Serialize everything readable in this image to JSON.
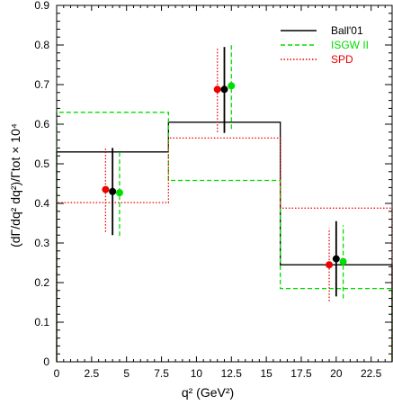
{
  "chart_data": {
    "type": "step",
    "xlabel": "q² (GeV²)",
    "ylabel": "(dΓ/dq² dq²)/Γtot × 10⁴",
    "xlim": [
      0,
      24
    ],
    "ylim": [
      0,
      0.9
    ],
    "x_ticks": [
      0,
      2.5,
      5,
      7.5,
      10,
      12.5,
      15,
      17.5,
      20,
      22.5
    ],
    "x_tick_labels": [
      "0",
      "2.5",
      "5",
      "7.5",
      "10",
      "12.5",
      "15",
      "17.5",
      "20",
      "22.5"
    ],
    "y_ticks": [
      0,
      0.1,
      0.2,
      0.3,
      0.4,
      0.5,
      0.6,
      0.7,
      0.8,
      0.9
    ],
    "y_tick_labels": [
      "0",
      "0.1",
      "0.2",
      "0.3",
      "0.4",
      "0.5",
      "0.6",
      "0.7",
      "0.8",
      "0.9"
    ],
    "bin_edges": [
      0,
      8,
      16,
      24
    ],
    "legend_position": "top-right",
    "series": [
      {
        "name": "Ball'01",
        "color": "#000000",
        "dash": "solid",
        "histogram": [
          0.53,
          0.605,
          0.245
        ],
        "points": [
          {
            "x": 4.0,
            "y": 0.43,
            "ylow": 0.32,
            "yhigh": 0.54
          },
          {
            "x": 12.0,
            "y": 0.688,
            "ylow": 0.578,
            "yhigh": 0.795
          },
          {
            "x": 20.0,
            "y": 0.26,
            "ylow": 0.165,
            "yhigh": 0.355
          }
        ]
      },
      {
        "name": "ISGW II",
        "color": "#00dd00",
        "dash": "dashed",
        "histogram": [
          0.63,
          0.458,
          0.185
        ],
        "points": [
          {
            "x": 4.5,
            "y": 0.427,
            "ylow": 0.318,
            "yhigh": 0.537
          },
          {
            "x": 12.5,
            "y": 0.697,
            "ylow": 0.588,
            "yhigh": 0.805
          },
          {
            "x": 20.5,
            "y": 0.253,
            "ylow": 0.16,
            "yhigh": 0.345
          }
        ]
      },
      {
        "name": "SPD",
        "color": "#ee0000",
        "dash": "dotted",
        "histogram": [
          0.402,
          0.565,
          0.388
        ],
        "points": [
          {
            "x": 3.5,
            "y": 0.435,
            "ylow": 0.328,
            "yhigh": 0.542
          },
          {
            "x": 11.5,
            "y": 0.688,
            "ylow": 0.58,
            "yhigh": 0.795
          },
          {
            "x": 19.5,
            "y": 0.245,
            "ylow": 0.153,
            "yhigh": 0.337
          }
        ]
      }
    ]
  }
}
